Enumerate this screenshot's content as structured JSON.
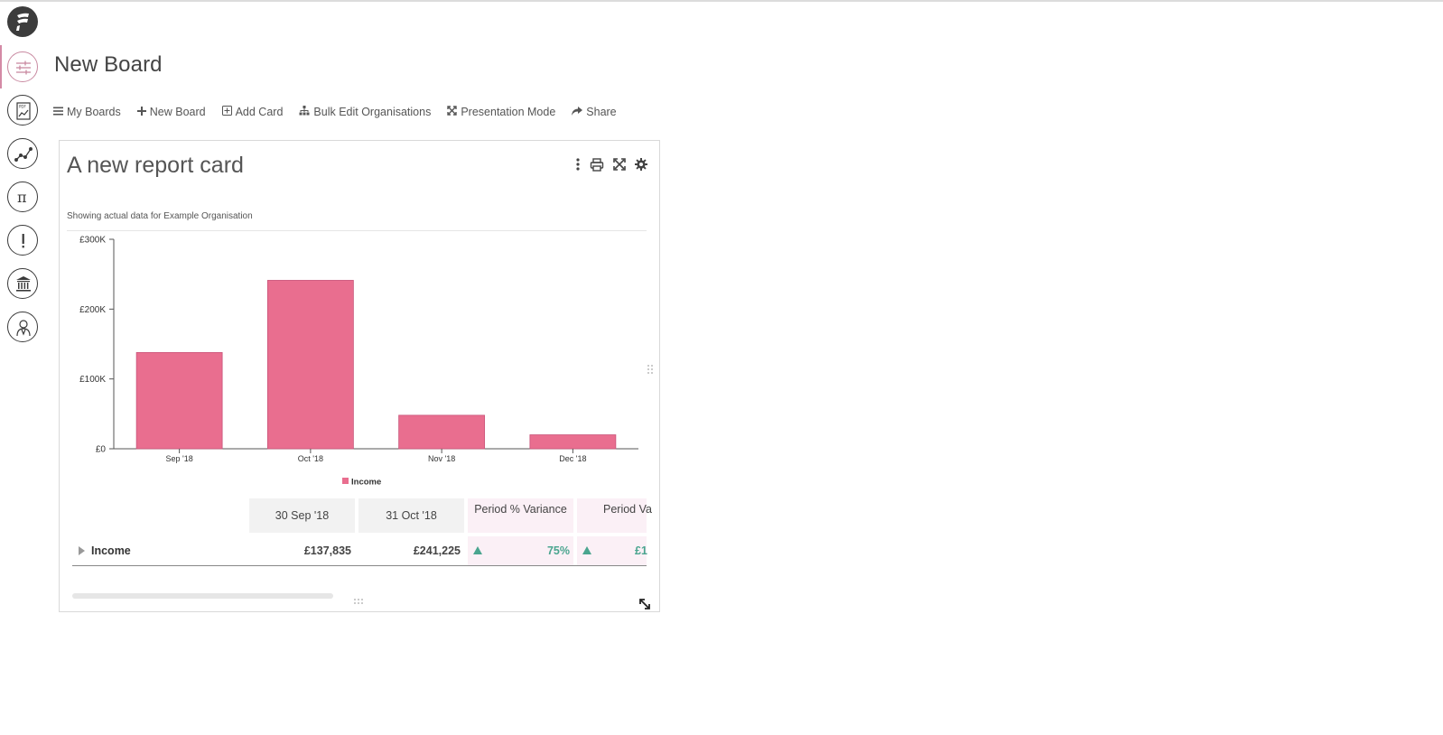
{
  "app": {
    "logo_icon": "app-logo-icon"
  },
  "sidebar": {
    "items": [
      {
        "name": "boards",
        "icon": "sliders-icon",
        "active": true
      },
      {
        "name": "pdf-reports",
        "icon": "pdf-report-icon",
        "active": false
      },
      {
        "name": "trends",
        "icon": "trend-line-icon",
        "active": false
      },
      {
        "name": "formulas",
        "icon": "pi-icon",
        "active": false
      },
      {
        "name": "alerts",
        "icon": "exclamation-icon",
        "active": false
      },
      {
        "name": "organisations",
        "icon": "bank-icon",
        "active": false
      },
      {
        "name": "users",
        "icon": "user-icon",
        "active": false
      }
    ]
  },
  "page": {
    "title": "New Board"
  },
  "toolbar": {
    "my_boards": "My Boards",
    "new_board": "New Board",
    "add_card": "Add Card",
    "bulk_edit": "Bulk Edit Organisations",
    "presentation": "Presentation Mode",
    "share": "Share"
  },
  "card": {
    "title": "A new report card",
    "subtitle": "Showing actual data for Example Organisation",
    "legend": "Income"
  },
  "chart_data": {
    "type": "bar",
    "categories": [
      "Sep '18",
      "Oct '18",
      "Nov '18",
      "Dec '18"
    ],
    "series": [
      {
        "name": "Income",
        "values": [
          137835,
          241225,
          48000,
          20000
        ],
        "color": "#e96e8f"
      }
    ],
    "yticks": [
      "£0",
      "£100K",
      "£200K",
      "£300K"
    ],
    "ylim": [
      0,
      300000
    ],
    "legend_position": "bottom",
    "grid": false
  },
  "table": {
    "columns": [
      "30 Sep '18",
      "31 Oct '18",
      "Period % Variance",
      "Period Va"
    ],
    "rows": [
      {
        "label": "Income",
        "sep": "£137,835",
        "oct": "£241,225",
        "pct_variance": "75%",
        "variance": "£1"
      }
    ]
  },
  "colors": {
    "accent": "#e96e8f",
    "positive": "#4aa58f",
    "active_nav": "#d48aa6"
  }
}
